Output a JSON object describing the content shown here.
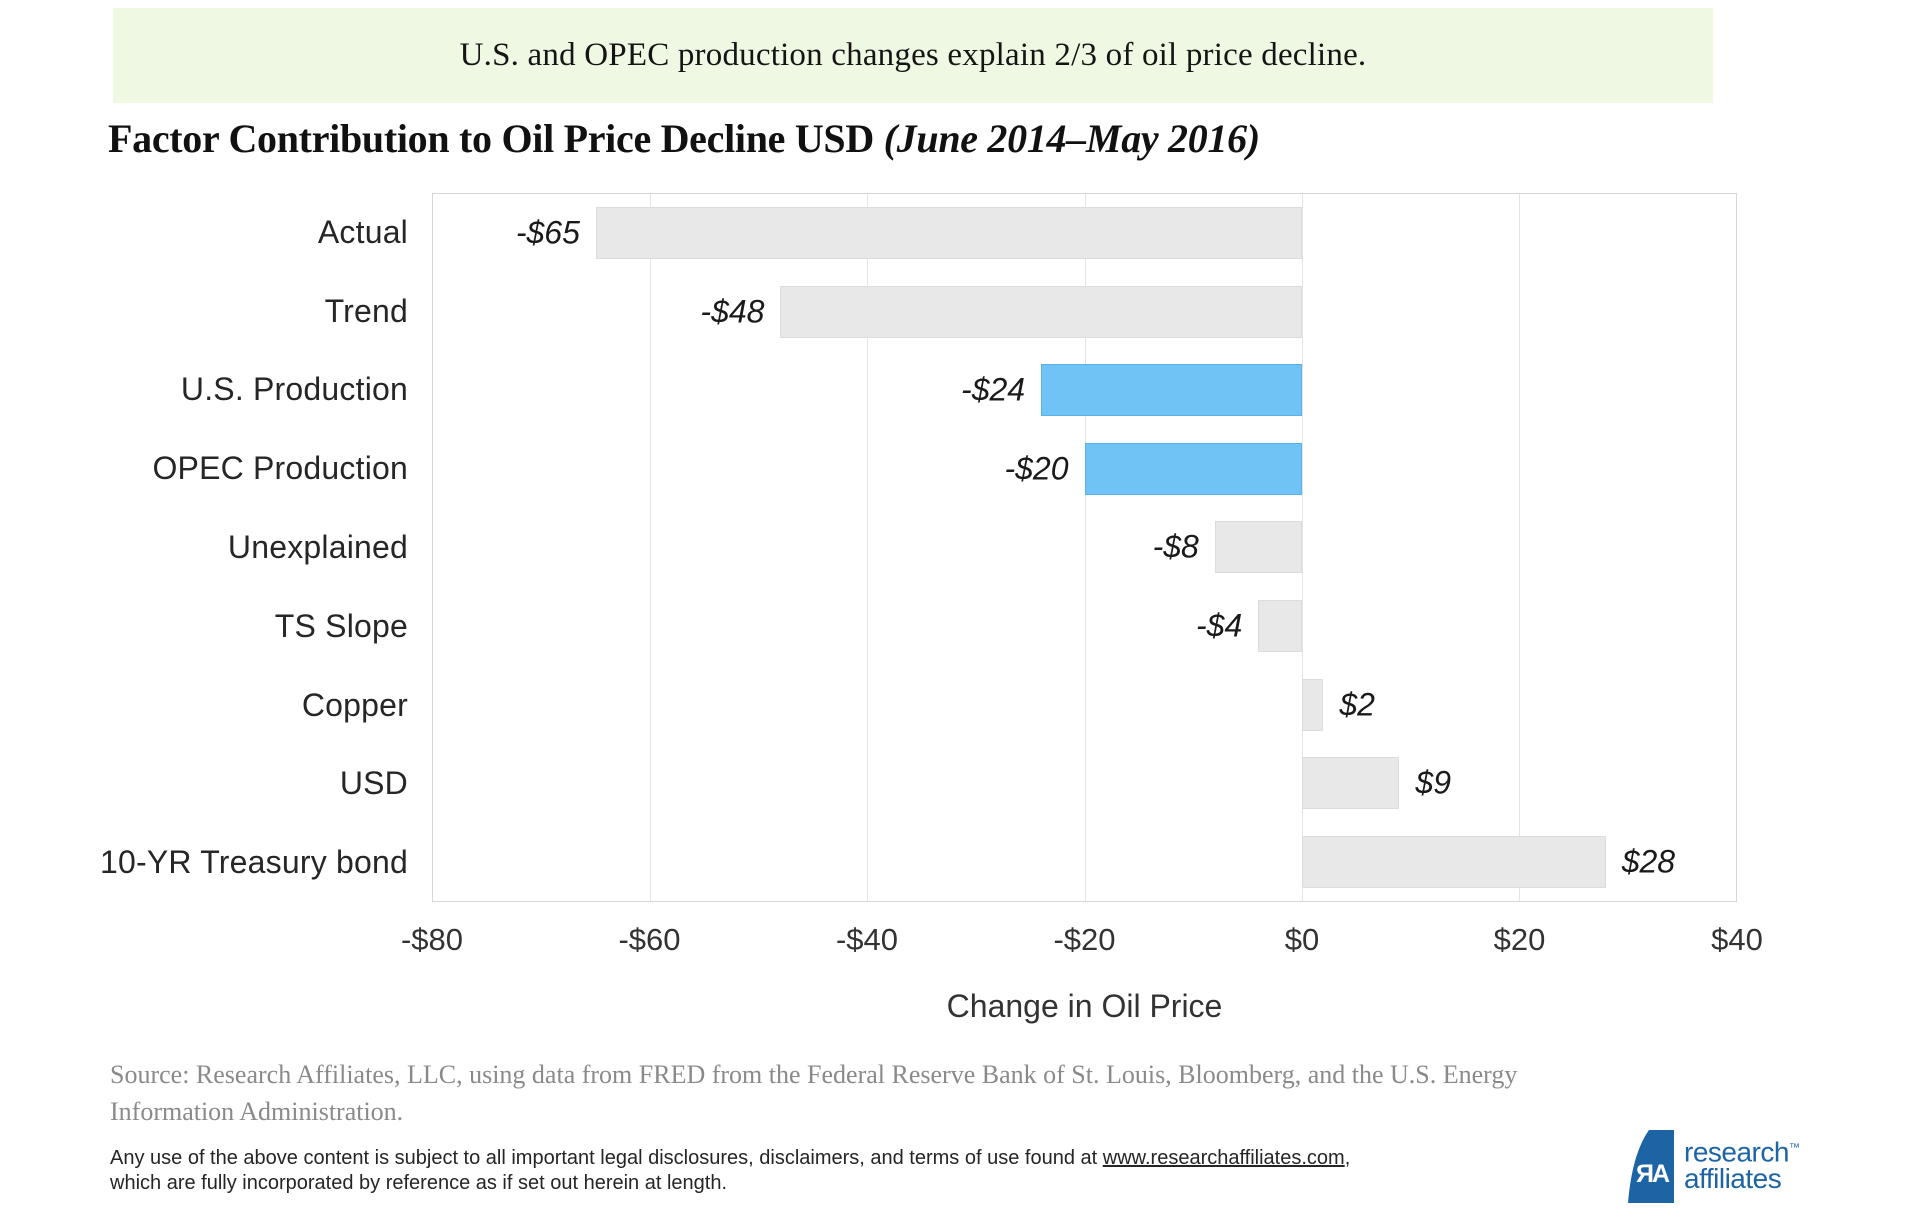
{
  "banner": {
    "text": "U.S. and OPEC production changes explain 2/3 of oil price decline."
  },
  "title": {
    "main": "Factor Contribution to Oil Price Decline USD ",
    "range": "(June 2014–May 2016)"
  },
  "chart_data": {
    "type": "bar",
    "orientation": "horizontal",
    "title": "Factor Contribution to Oil Price Decline USD (June 2014–May 2016)",
    "xlabel": "Change in Oil Price",
    "ylabel": "",
    "xlim": [
      -80,
      40
    ],
    "grid": true,
    "ticks": [
      {
        "label": "-$80",
        "value": -80
      },
      {
        "label": "-$60",
        "value": -60
      },
      {
        "label": "-$40",
        "value": -40
      },
      {
        "label": "-$20",
        "value": -20
      },
      {
        "label": "$0",
        "value": 0
      },
      {
        "label": "$20",
        "value": 20
      },
      {
        "label": "$40",
        "value": 40
      }
    ],
    "rows": [
      {
        "category": "Actual",
        "value": -65,
        "label": "-$65",
        "highlight": false
      },
      {
        "category": "Trend",
        "value": -48,
        "label": "-$48",
        "highlight": false
      },
      {
        "category": "U.S. Production",
        "value": -24,
        "label": "-$24",
        "highlight": true
      },
      {
        "category": "OPEC Production",
        "value": -20,
        "label": "-$20",
        "highlight": true
      },
      {
        "category": "Unexplained",
        "value": -8,
        "label": "-$8",
        "highlight": false
      },
      {
        "category": "TS Slope",
        "value": -4,
        "label": "-$4",
        "highlight": false
      },
      {
        "category": "Copper",
        "value": 2,
        "label": "$2",
        "highlight": false
      },
      {
        "category": "USD",
        "value": 9,
        "label": "$9",
        "highlight": false
      },
      {
        "category": "10-YR Treasury bond",
        "value": 28,
        "label": "$28",
        "highlight": false
      }
    ],
    "colors": {
      "bar_default": "#e8e8e8",
      "bar_highlight": "#70c4f5",
      "banner_background": "#eff8e2",
      "logo_blue": "#1d64a5"
    }
  },
  "source": {
    "lines": [
      "Source: Research Affiliates, LLC, using data from FRED from the Federal Reserve Bank of St. Louis, Bloomberg, and the U.S. Energy",
      "Information Administration."
    ]
  },
  "legal": {
    "before_link": "Any use of the above content is subject to all important legal disclosures, disclaimers, and terms of use found at ",
    "link": "www.researchaffiliates.com",
    "after_link": ",",
    "line2": "which are fully incorporated by reference as if set out herein at length."
  },
  "logo": {
    "monogram": "ЯA",
    "line1": "research",
    "trademark": "™",
    "line2": "affiliates"
  }
}
